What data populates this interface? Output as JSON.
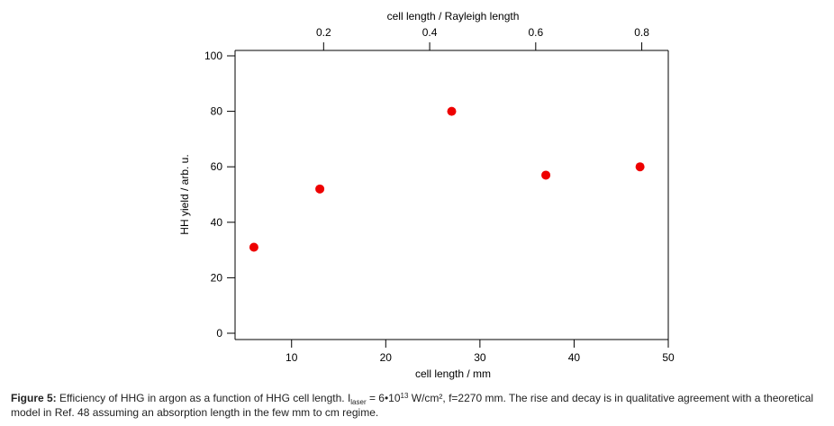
{
  "chart_data": {
    "type": "scatter",
    "xlabel": "cell length / mm",
    "ylabel": "HH yield / arb. u.",
    "top_xlabel": "cell length / Rayleigh length",
    "xlim": [
      4,
      50
    ],
    "ylim": [
      0,
      100
    ],
    "xlim_top": [
      0.033,
      0.85
    ],
    "x_ticks": [
      "10",
      "20",
      "30",
      "40",
      "50"
    ],
    "y_ticks": [
      "0",
      "20",
      "40",
      "60",
      "80",
      "100"
    ],
    "top_ticks": [
      "0.2",
      "0.4",
      "0.6",
      "0.8"
    ],
    "grid": false,
    "marker_color": "#ee0000",
    "series": [
      {
        "x": [
          6,
          13,
          27,
          37,
          47
        ],
        "y": [
          31,
          52,
          80,
          57,
          60
        ]
      }
    ]
  },
  "caption": {
    "label": "Figure 5:",
    "text_a": " Efficiency of HHG in argon as a function of HHG cell length. I",
    "laser_sub": "laser",
    "text_b": " = 6•10",
    "power_sup": "13",
    "text_c": " W/cm², f=2270 mm. The rise and decay is in qualitative agreement with a theoretical model in Ref. 48 assuming an absorption length in the few mm to cm regime."
  }
}
